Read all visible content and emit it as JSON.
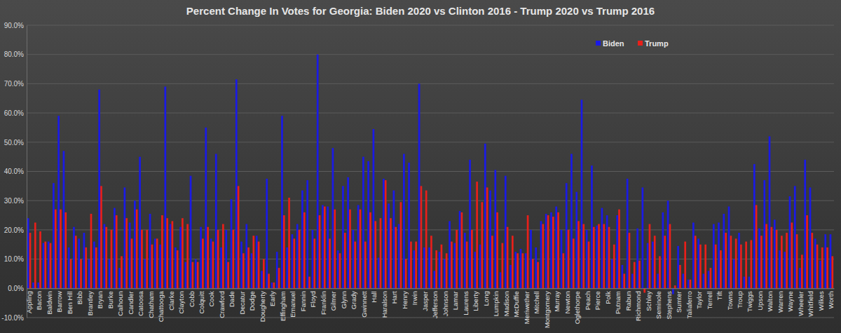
{
  "chart_data": {
    "type": "bar",
    "title": "Percent Change In Votes for Georgia: Biden 2020 vs Clinton 2016 - Trump 2020 vs Trump 2016",
    "categories": [
      "Appling",
      null,
      "Bacon",
      null,
      "Baldwin",
      null,
      "Barrow",
      null,
      "Ben Hill",
      null,
      "Bibb",
      null,
      "Brantley",
      null,
      "Bryan",
      null,
      "Burke",
      null,
      "Calhoun",
      null,
      "Candler",
      null,
      "Catoosa",
      null,
      "Chatham",
      null,
      "Chattooga",
      null,
      "Clarke",
      null,
      "Clayton",
      null,
      "Cobb",
      null,
      "Colquitt",
      null,
      "Cook",
      null,
      "Crawford",
      null,
      "Dade",
      null,
      "Decatur",
      null,
      "Dodge",
      null,
      "Dougherty",
      null,
      "Early",
      null,
      "Effingham",
      null,
      "Emanuel",
      null,
      "Fannin",
      null,
      "Floyd",
      null,
      "Franklin",
      null,
      "Gilmer",
      null,
      "Glynn",
      null,
      "Grady",
      null,
      "Gwinnett",
      null,
      "Hall",
      null,
      "Haralson",
      null,
      "Hart",
      null,
      "Henry",
      null,
      "Irwin",
      null,
      "Jasper",
      null,
      "Jefferson",
      null,
      "Johnson",
      null,
      "Lamar",
      null,
      "Laurens",
      null,
      "Liberty",
      null,
      "Long",
      null,
      "Lumpkin",
      null,
      "Madison",
      null,
      "McDuffie",
      null,
      "Meriwether",
      null,
      "Mitchell",
      null,
      "Montgomery",
      null,
      "Murray",
      null,
      "Newton",
      null,
      "Oglethorpe",
      null,
      "Peach",
      null,
      "Pierce",
      null,
      "Polk",
      null,
      "Putnam",
      null,
      "Rabun",
      null,
      "Richmond",
      null,
      "Schley",
      null,
      "Seminole",
      null,
      "Stephens",
      null,
      "Sumter",
      null,
      "Taliaferro",
      null,
      "Taylor",
      null,
      "Terrell",
      null,
      "Tift",
      null,
      "Towns",
      null,
      "Troup",
      null,
      "Twiggs",
      null,
      "Upson",
      null,
      "Walton",
      null,
      "Warren",
      null,
      "Wayne",
      null,
      "Wheeler",
      null,
      "Whitfield",
      null,
      "Wilkes",
      null,
      "Worth"
    ],
    "series": [
      {
        "name": "Biden",
        "color": "#1a1ae6",
        "values": [
          24,
          2,
          2,
          15.5,
          16,
          36,
          59,
          47,
          14,
          21,
          17,
          19,
          10,
          16,
          68,
          22,
          10,
          27.5,
          7,
          34.5,
          22.5,
          30,
          45,
          10,
          25.5,
          17,
          15,
          69,
          22,
          14,
          21,
          9,
          38.5,
          10,
          21,
          55,
          17,
          46,
          14,
          20,
          30.5,
          71.5,
          16,
          22,
          12,
          18,
          6,
          37.5,
          2,
          12.5,
          59,
          14,
          18.5,
          22,
          33.5,
          37,
          20,
          80,
          28.5,
          28,
          48,
          13,
          35,
          38,
          20,
          28.5,
          45,
          43.5,
          54.5,
          10.5,
          37.5,
          29,
          33.5,
          22,
          46,
          43,
          13,
          70,
          14,
          14,
          6,
          12.5,
          10,
          23,
          15.5,
          26.5,
          19,
          44,
          12.5,
          15,
          49.5,
          33.5,
          40.5,
          5.5,
          38.5,
          8,
          12.5,
          13.5,
          12,
          20,
          14,
          23,
          25.5,
          26,
          28,
          20,
          36,
          46,
          33,
          64.5,
          20,
          42,
          21.5,
          27.5,
          25,
          10,
          25,
          8,
          37.5,
          5,
          20.5,
          34.5,
          15.5,
          16,
          5,
          26,
          30,
          -2,
          14.5,
          5,
          3,
          22.5,
          17,
          5,
          6,
          22,
          22.5,
          25.5,
          28,
          10,
          19,
          4,
          4,
          42.5,
          20.5,
          37,
          52,
          23.5,
          13,
          12.5,
          31.5,
          35,
          7,
          44,
          34.5,
          17,
          9.5,
          18.5,
          18.5
        ]
      },
      {
        "name": "Trump",
        "color": "#e8201a",
        "values": [
          19,
          22.5,
          19.5,
          16,
          15.5,
          27,
          27,
          26,
          10,
          18,
          10,
          14,
          25.5,
          14,
          35,
          21,
          20,
          25,
          11,
          24,
          17,
          27,
          20,
          20,
          15,
          17,
          25,
          24,
          23,
          13,
          24,
          22,
          9,
          9,
          17,
          21,
          16,
          20,
          22,
          9,
          20,
          35,
          12,
          14,
          18,
          16,
          10,
          5,
          2,
          7,
          25,
          31,
          17,
          20,
          26,
          4,
          17,
          25,
          28,
          17,
          27,
          12,
          19,
          27,
          16,
          27,
          16,
          26,
          23,
          24,
          37,
          24,
          21,
          29.5,
          10,
          16,
          16,
          35,
          33.5,
          18,
          13,
          15,
          12,
          16,
          20,
          26,
          16,
          20,
          36.5,
          29.5,
          34.5,
          18,
          26,
          15.5,
          21,
          18,
          12,
          12,
          25,
          10,
          9,
          22,
          25,
          24.5,
          26,
          12,
          20,
          17,
          23,
          22,
          16,
          21,
          22,
          22,
          21,
          15,
          27,
          5,
          19,
          9,
          9.5,
          -1.5,
          22,
          18,
          11,
          18,
          22,
          1,
          8,
          16,
          3,
          18,
          15,
          15,
          7,
          15,
          13,
          19,
          18,
          17,
          15,
          16,
          16.5,
          28.5,
          18,
          22,
          21,
          20,
          18,
          19,
          22.5,
          18.5,
          11.5,
          25,
          19,
          15,
          14,
          14,
          11
        ]
      }
    ],
    "ylim": [
      -10,
      90
    ],
    "yticks": [
      {
        "value": -10,
        "label": "-10.0%"
      },
      {
        "value": 0,
        "label": "0.0%"
      },
      {
        "value": 10,
        "label": "10.0%"
      },
      {
        "value": 20,
        "label": "20.0%"
      },
      {
        "value": 30,
        "label": "30.0%"
      },
      {
        "value": 40,
        "label": "40.0%"
      },
      {
        "value": 50,
        "label": "50.0%"
      },
      {
        "value": 60,
        "label": "60.0%"
      },
      {
        "value": 70,
        "label": "70.0%"
      },
      {
        "value": 80,
        "label": "80.0%"
      },
      {
        "value": 90,
        "label": "90.0%"
      }
    ],
    "grid": true,
    "legend": "top-right"
  }
}
